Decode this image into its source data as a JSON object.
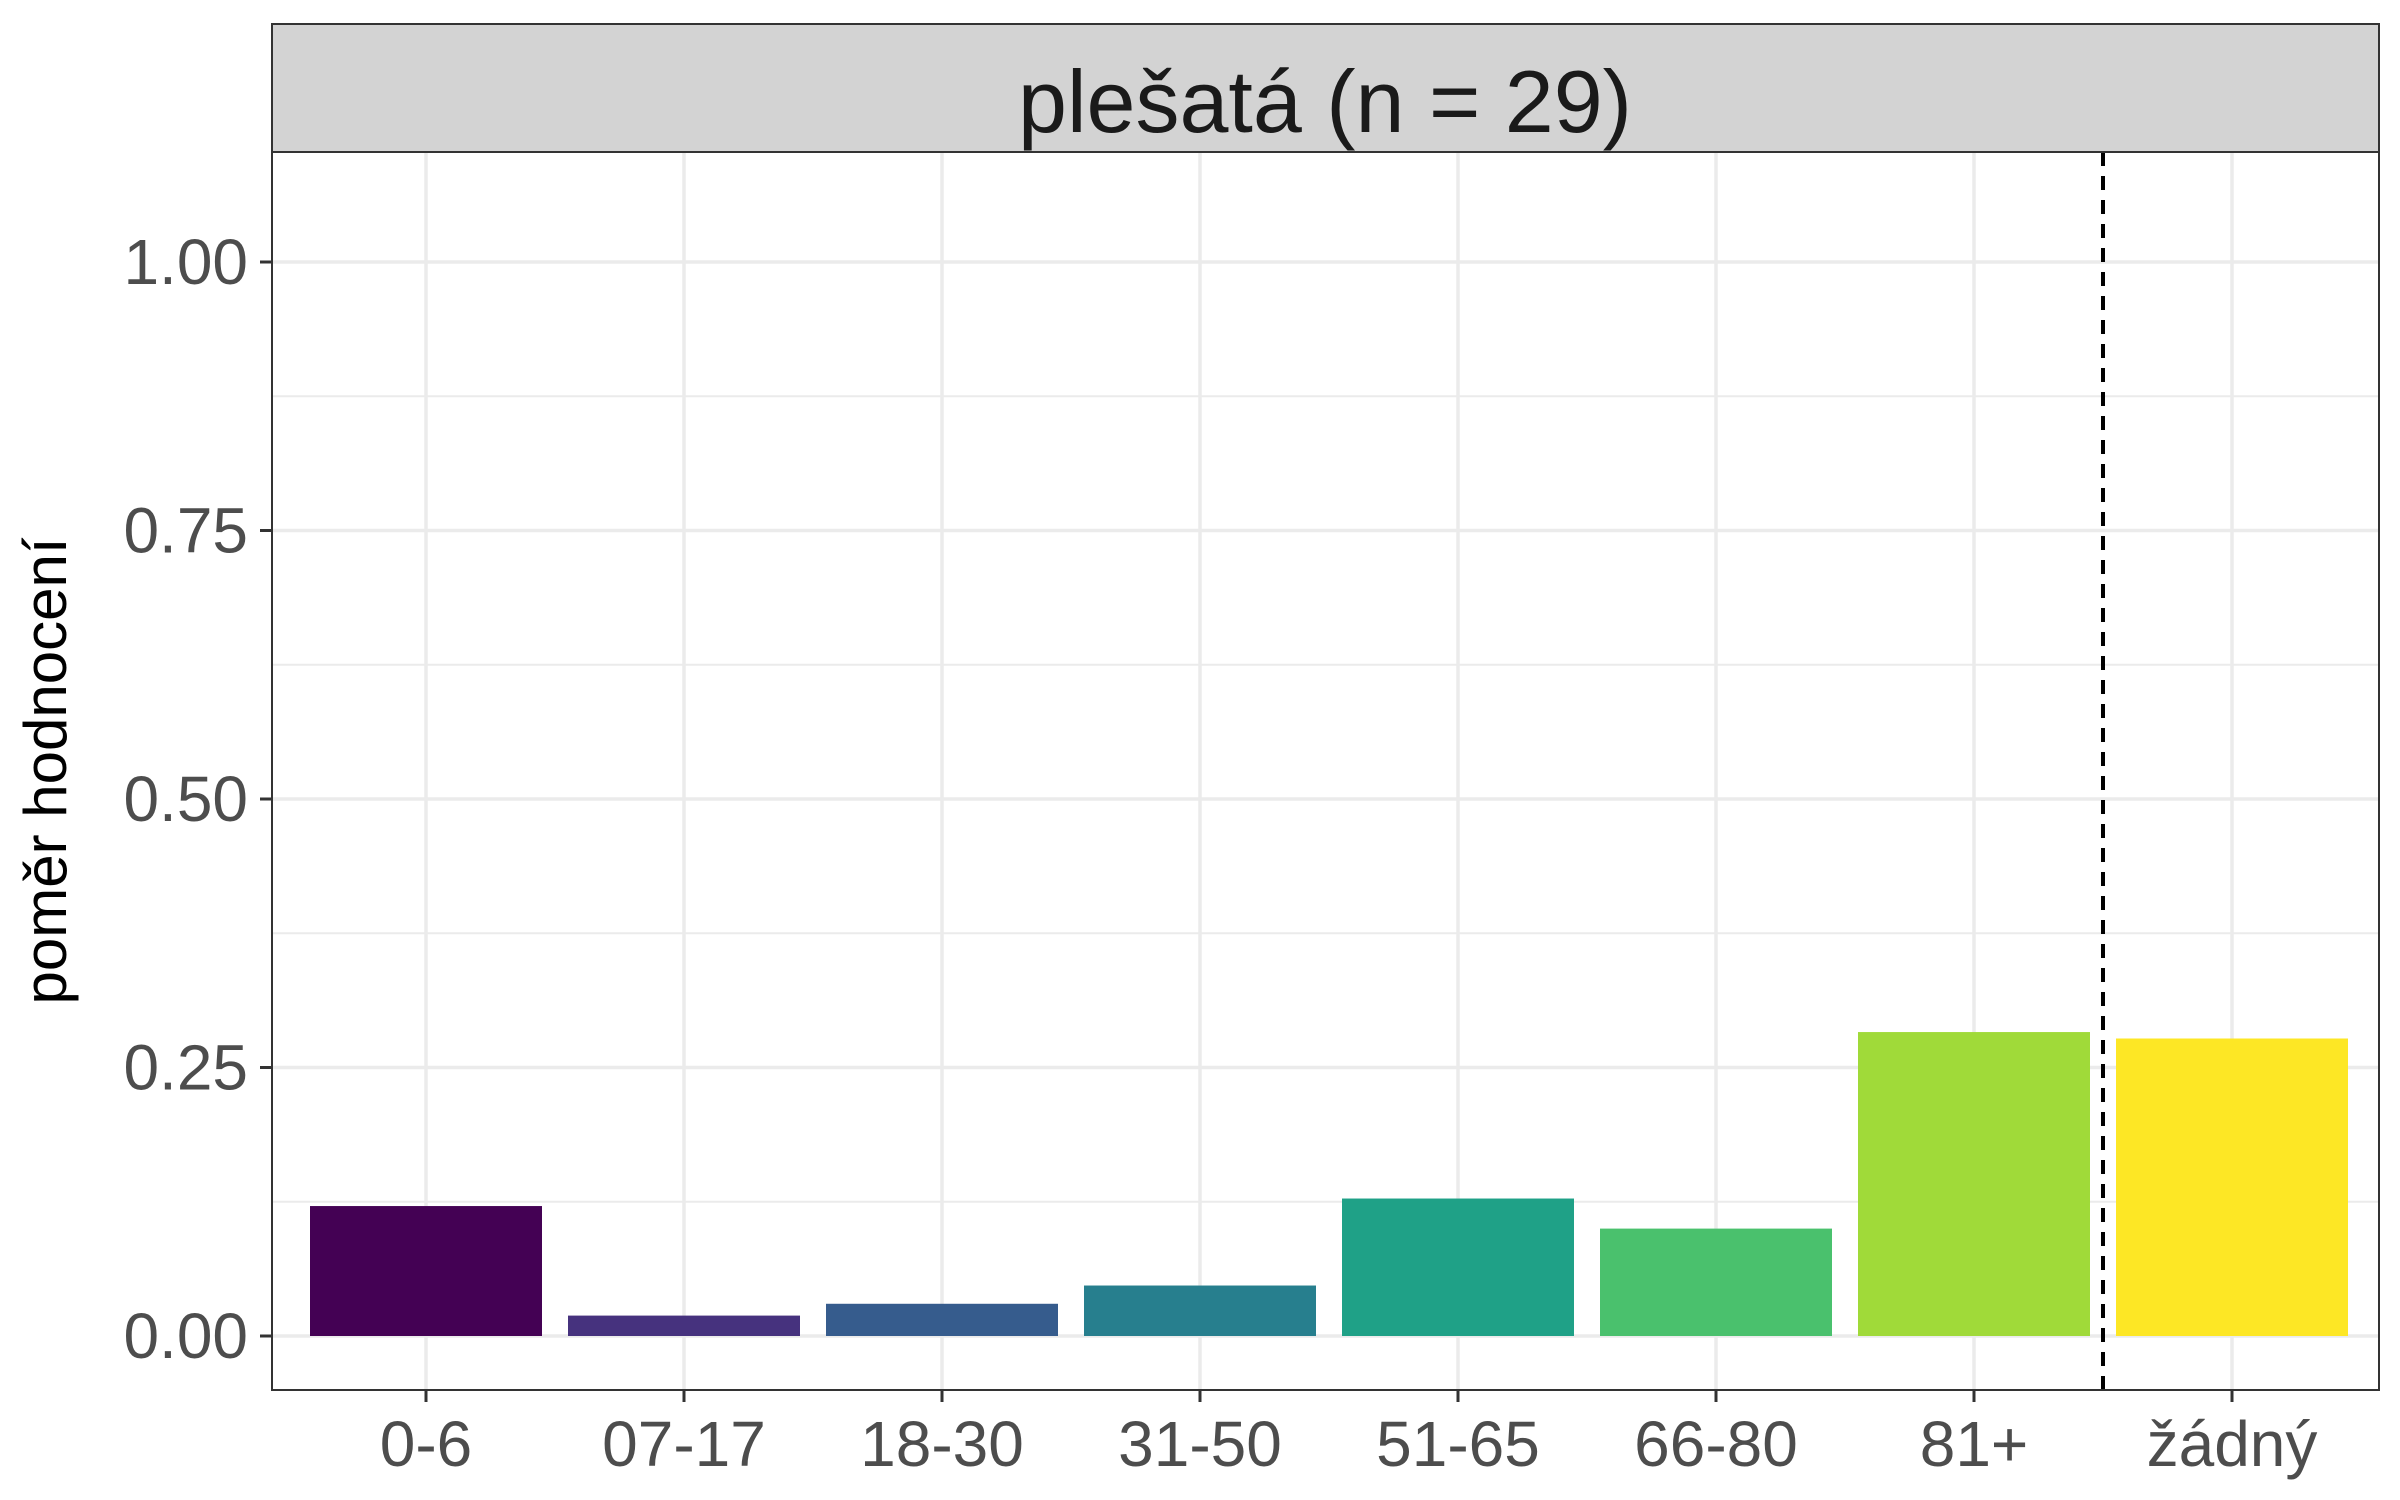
{
  "chart_data": {
    "type": "bar",
    "title": "plešatá (n = 29)",
    "xlabel": "",
    "ylabel": "poměr hodnocení",
    "categories": [
      "0-6",
      "07-17",
      "18-30",
      "31-50",
      "51-65",
      "66-80",
      "81+",
      "žádný"
    ],
    "values": [
      0.121,
      0.019,
      0.03,
      0.047,
      0.128,
      0.1,
      0.283,
      0.277
    ],
    "colors": [
      "#440154",
      "#46327e",
      "#365c8d",
      "#277f8e",
      "#1fa187",
      "#4ac16d",
      "#a0da39",
      "#fde725"
    ],
    "ylim": [
      0,
      1.1
    ],
    "yticks": [
      0,
      0.25,
      0.5,
      0.75,
      1.0
    ],
    "ytick_labels": [
      "0.00",
      "0.25",
      "0.50",
      "0.75",
      "1.00"
    ],
    "separator_after_category": "81+",
    "separator_style": "dashed",
    "grid": true,
    "legend": "none"
  }
}
